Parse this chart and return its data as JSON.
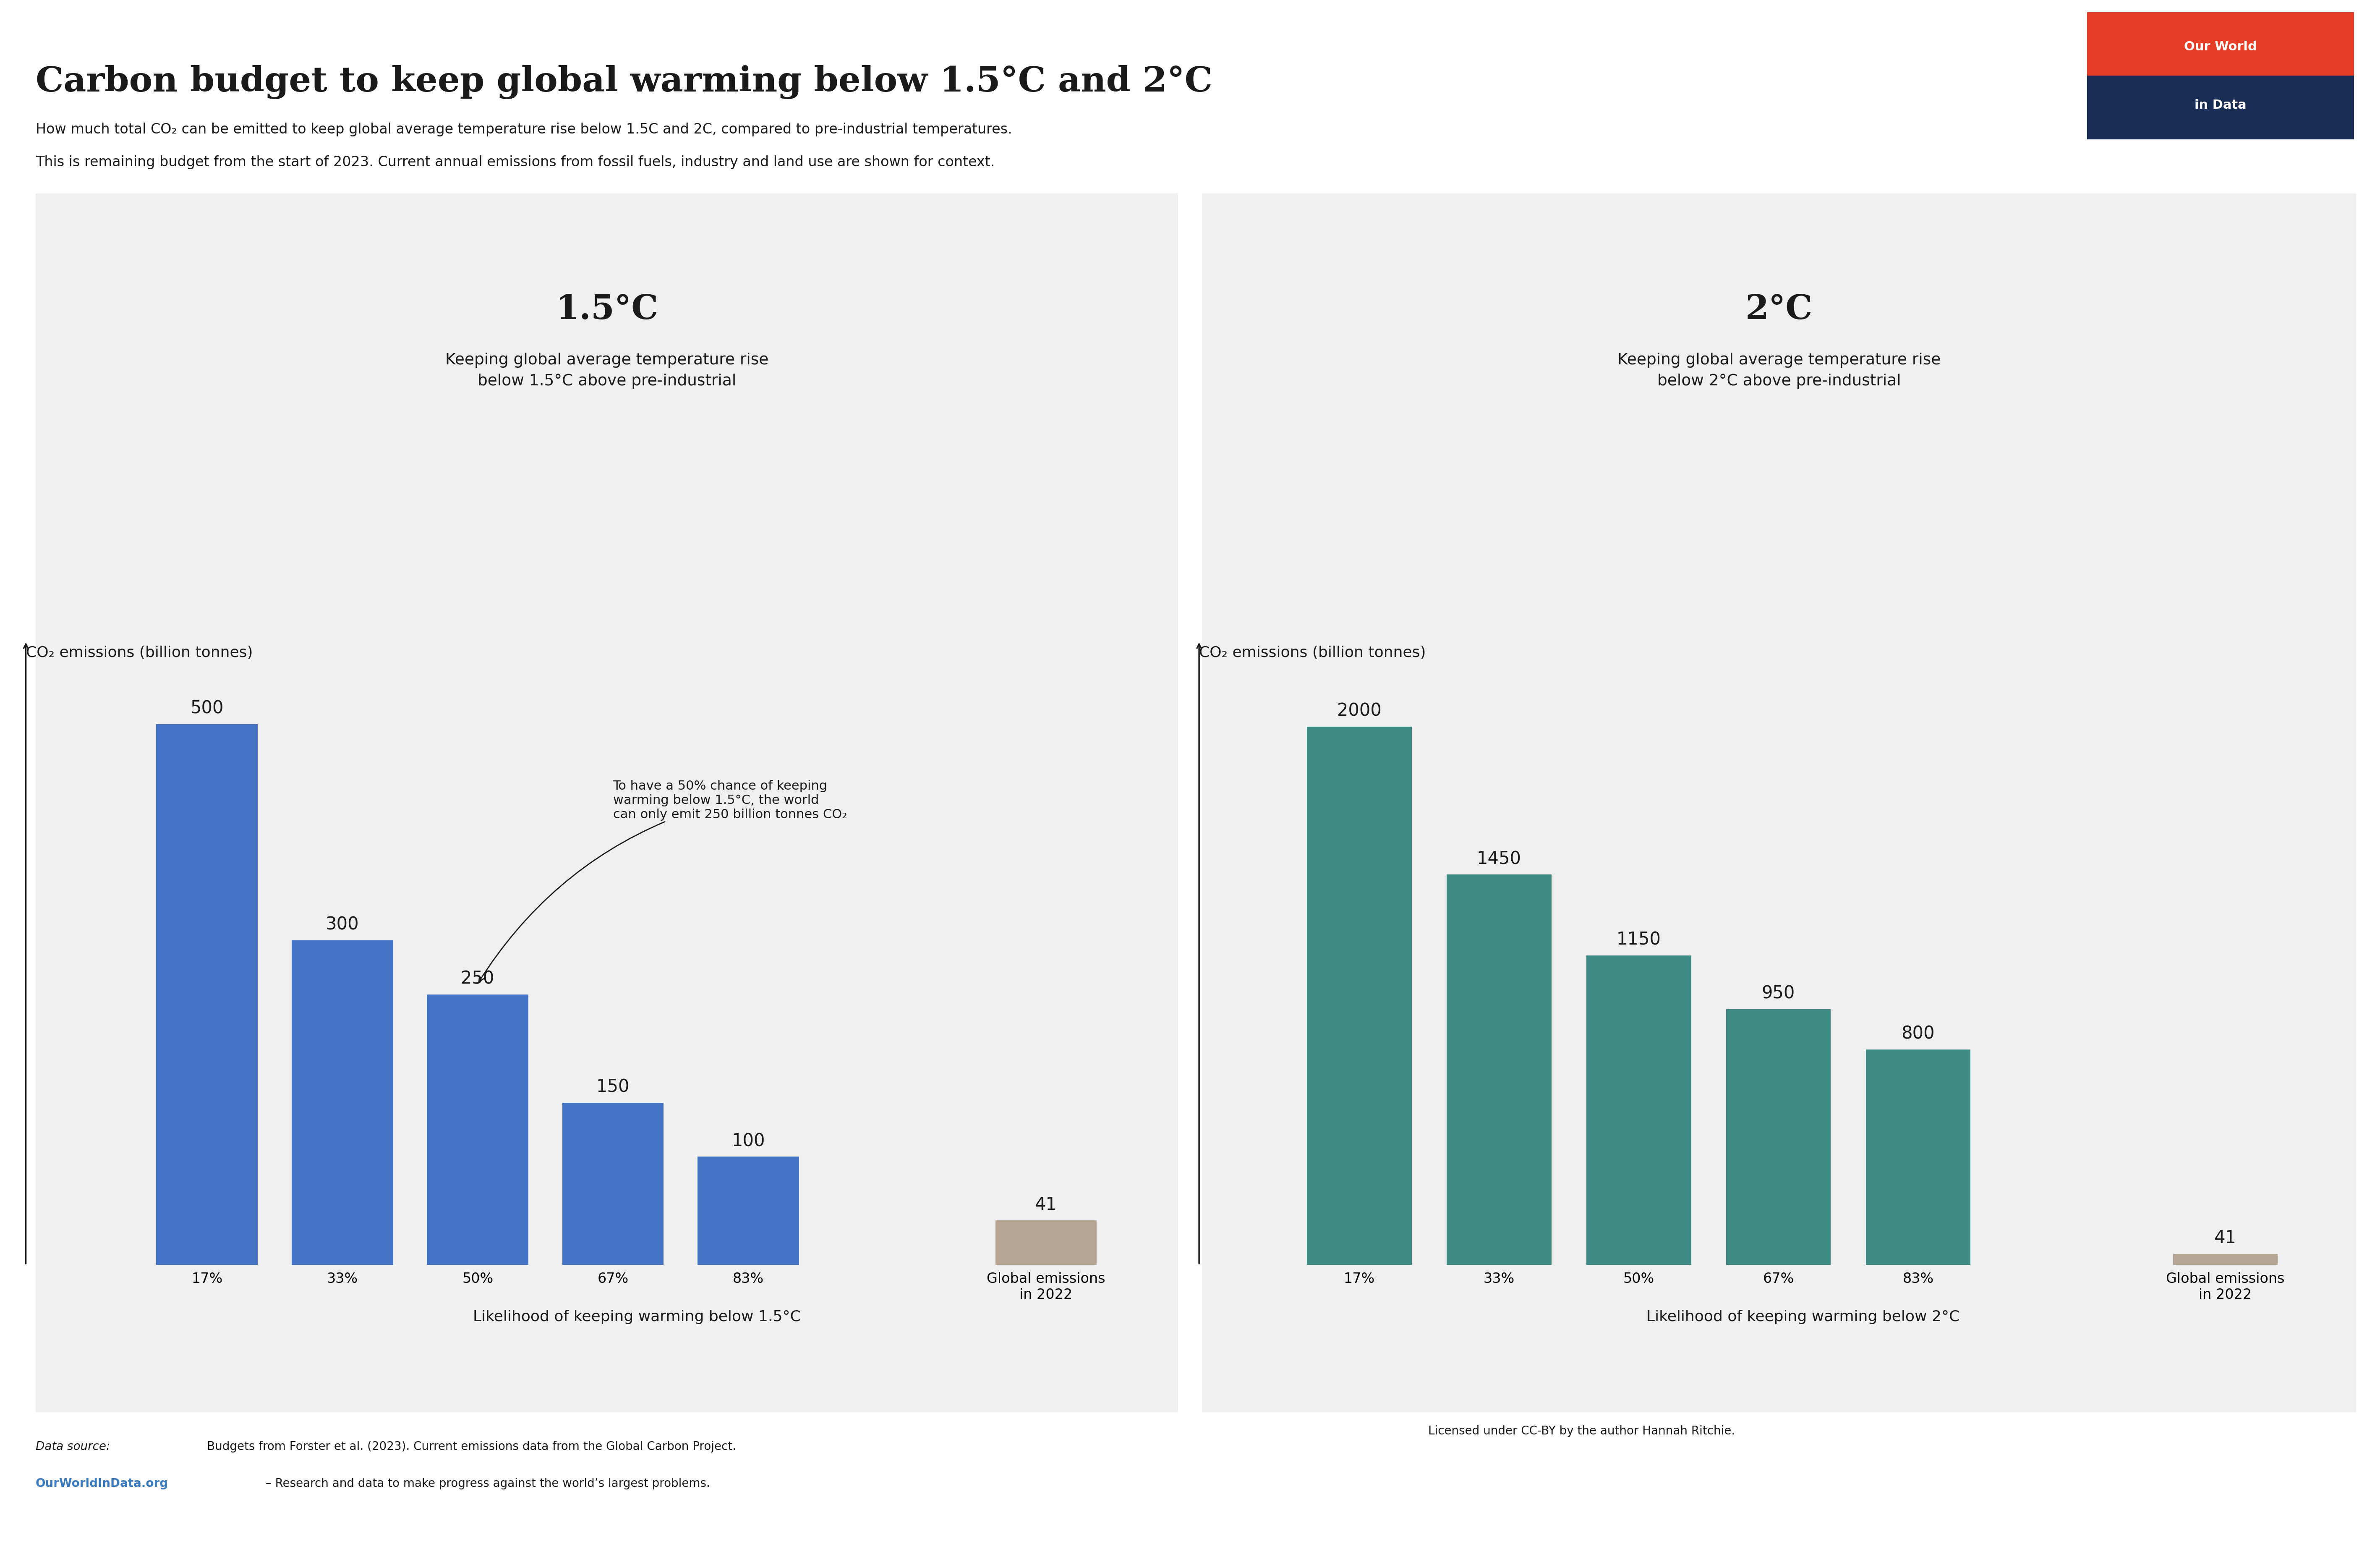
{
  "title": "Carbon budget to keep global warming below 1.5°C and 2°C",
  "subtitle_line1": "How much total CO₂ can be emitted to keep global average temperature rise below 1.5C and 2C, compared to pre-industrial temperatures.",
  "subtitle_line2": "This is remaining budget from the start of 2023. Current annual emissions from fossil fuels, industry and land use are shown for context.",
  "panel_bg_color": "#efefef",
  "outer_bg_color": "#ffffff",
  "left_panel": {
    "title": "1.5°C",
    "subtitle": "Keeping global average temperature rise\nbelow 1.5°C above pre-industrial",
    "ylabel": "CO₂ emissions (billion tonnes)",
    "categories": [
      "17%",
      "33%",
      "50%",
      "67%",
      "83%",
      "Global emissions\nin 2022"
    ],
    "values": [
      500,
      300,
      250,
      150,
      100,
      41
    ],
    "bar_colors_main": "#4472c4",
    "bar_color_last": "#b5a592",
    "xlabel": "Likelihood of keeping warming below 1.5°C",
    "ylim": [
      0,
      560
    ],
    "annotation_text": "To have a 50% chance of keeping\nwarming below 1.5°C, the world\ncan only emit 250 billion tonnes CO₂",
    "annotation_bar_idx": 2,
    "annotation_bar_val": 255
  },
  "right_panel": {
    "title": "2°C",
    "subtitle": "Keeping global average temperature rise\nbelow 2°C above pre-industrial",
    "ylabel": "CO₂ emissions (billion tonnes)",
    "categories": [
      "17%",
      "33%",
      "50%",
      "67%",
      "83%",
      "Global emissions\nin 2022"
    ],
    "values": [
      2000,
      1450,
      1150,
      950,
      800,
      41
    ],
    "bar_colors_main": "#3d8a84",
    "bar_color_last": "#b5a592",
    "xlabel": "Likelihood of keeping warming below 2°C",
    "ylim": [
      0,
      2250
    ]
  },
  "owid_red": "#e63d27",
  "owid_navy": "#1a2e55",
  "title_color": "#1a1a1a",
  "text_color": "#1a1a1a",
  "footer_source_label": "Data source: ",
  "footer_source_text": "Budgets from Forster et al. (2023). Current emissions data from the Global Carbon Project.",
  "footer_owid": "OurWorldInData.org",
  "footer_owid_suffix": " – Research and data to make progress against the world’s largest problems.",
  "footer_license": "Licensed under CC-BY by the author Hannah Ritchie.",
  "value_label_fontsize": 30,
  "axis_label_fontsize": 26,
  "tick_label_fontsize": 24,
  "panel_title_fontsize": 58,
  "panel_subtitle_fontsize": 27,
  "main_title_fontsize": 60,
  "subtitle_fontsize": 24,
  "footer_fontsize": 20,
  "annotation_fontsize": 22
}
